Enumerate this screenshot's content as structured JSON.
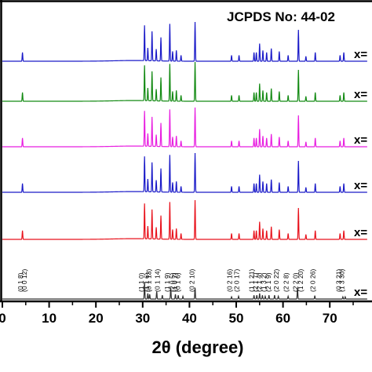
{
  "chart_data": {
    "type": "line",
    "title": "JCPDS No: 44-02",
    "xlabel": "2θ (degree)",
    "ylabel": "",
    "xlim": [
      0,
      78
    ],
    "x_ticks": [
      0,
      10,
      20,
      30,
      40,
      50,
      60,
      70
    ],
    "x_tick_labels": [
      "0",
      "10",
      "20",
      "30",
      "40",
      "50",
      "60",
      "70"
    ],
    "grid": false,
    "legend": "none",
    "series": [
      {
        "name": "x=",
        "color": "#333333",
        "peaks": [
          [
            30.4,
            9
          ],
          [
            31.1,
            3
          ],
          [
            31.5,
            2.5
          ],
          [
            33.0,
            4
          ],
          [
            34.2,
            2
          ],
          [
            36.0,
            6
          ],
          [
            37.0,
            2.5
          ],
          [
            37.6,
            2
          ],
          [
            38.6,
            1.5
          ],
          [
            41.2,
            6
          ],
          [
            49.0,
            1.2
          ],
          [
            50.5,
            1.5
          ],
          [
            53.8,
            2
          ],
          [
            54.4,
            2
          ],
          [
            55.0,
            3
          ],
          [
            55.6,
            2
          ],
          [
            56.2,
            1.5
          ],
          [
            57.0,
            2
          ],
          [
            58.2,
            2
          ],
          [
            59.0,
            1.5
          ],
          [
            61.1,
            1.5
          ],
          [
            63.1,
            6
          ],
          [
            66.8,
            1.8
          ],
          [
            72.8,
            1.2
          ],
          [
            73.3,
            1.2
          ]
        ],
        "baseline": 0
      },
      {
        "name": "x=",
        "color": "#e8121c",
        "peaks": [
          [
            4.3,
            9
          ],
          [
            30.4,
            36
          ],
          [
            31.1,
            13
          ],
          [
            32.0,
            30
          ],
          [
            32.9,
            12
          ],
          [
            33.9,
            24
          ],
          [
            35.8,
            38
          ],
          [
            36.4,
            10
          ],
          [
            37.2,
            11
          ],
          [
            38.2,
            6
          ],
          [
            41.2,
            40
          ],
          [
            49.0,
            6
          ],
          [
            50.6,
            6
          ],
          [
            53.8,
            9
          ],
          [
            54.3,
            9
          ],
          [
            55.0,
            18
          ],
          [
            55.7,
            11
          ],
          [
            56.5,
            9
          ],
          [
            57.5,
            13
          ],
          [
            59.2,
            10
          ],
          [
            61.1,
            6
          ],
          [
            63.3,
            32
          ],
          [
            64.9,
            5
          ],
          [
            66.9,
            9
          ],
          [
            72.2,
            6
          ],
          [
            73.0,
            9
          ]
        ],
        "baseline": 0
      },
      {
        "name": "x=",
        "color": "#1a1ac8",
        "peaks": [
          [
            4.3,
            9
          ],
          [
            30.4,
            36
          ],
          [
            31.1,
            13
          ],
          [
            32.0,
            30
          ],
          [
            32.9,
            12
          ],
          [
            33.9,
            24
          ],
          [
            35.8,
            38
          ],
          [
            36.4,
            10
          ],
          [
            37.2,
            11
          ],
          [
            38.2,
            6
          ],
          [
            41.2,
            40
          ],
          [
            49.0,
            6
          ],
          [
            50.6,
            6
          ],
          [
            53.8,
            9
          ],
          [
            54.3,
            9
          ],
          [
            55.0,
            18
          ],
          [
            55.7,
            11
          ],
          [
            56.5,
            9
          ],
          [
            57.5,
            13
          ],
          [
            59.2,
            10
          ],
          [
            61.1,
            6
          ],
          [
            63.3,
            32
          ],
          [
            64.9,
            5
          ],
          [
            66.9,
            9
          ],
          [
            72.2,
            6
          ],
          [
            73.0,
            9
          ]
        ],
        "baseline": 0
      },
      {
        "name": "x=",
        "color": "#e81ee0",
        "peaks": [
          [
            4.3,
            9
          ],
          [
            30.4,
            36
          ],
          [
            31.1,
            13
          ],
          [
            32.0,
            30
          ],
          [
            32.9,
            12
          ],
          [
            33.9,
            24
          ],
          [
            35.8,
            38
          ],
          [
            36.4,
            10
          ],
          [
            37.2,
            11
          ],
          [
            38.2,
            6
          ],
          [
            41.2,
            40
          ],
          [
            49.0,
            6
          ],
          [
            50.6,
            6
          ],
          [
            53.8,
            9
          ],
          [
            54.3,
            9
          ],
          [
            55.0,
            18
          ],
          [
            55.7,
            11
          ],
          [
            56.5,
            9
          ],
          [
            57.5,
            13
          ],
          [
            59.2,
            10
          ],
          [
            61.1,
            6
          ],
          [
            63.3,
            32
          ],
          [
            64.9,
            5
          ],
          [
            66.9,
            9
          ],
          [
            72.2,
            6
          ],
          [
            73.0,
            9
          ]
        ],
        "baseline": 0
      },
      {
        "name": "x=",
        "color": "#138a13",
        "peaks": [
          [
            4.3,
            9
          ],
          [
            30.4,
            36
          ],
          [
            31.1,
            13
          ],
          [
            32.0,
            30
          ],
          [
            32.9,
            12
          ],
          [
            33.9,
            24
          ],
          [
            35.8,
            38
          ],
          [
            36.4,
            10
          ],
          [
            37.2,
            11
          ],
          [
            38.2,
            6
          ],
          [
            41.2,
            40
          ],
          [
            49.0,
            6
          ],
          [
            50.6,
            6
          ],
          [
            53.8,
            9
          ],
          [
            54.3,
            9
          ],
          [
            55.0,
            18
          ],
          [
            55.7,
            11
          ],
          [
            56.5,
            9
          ],
          [
            57.5,
            13
          ],
          [
            59.2,
            10
          ],
          [
            61.1,
            6
          ],
          [
            63.3,
            32
          ],
          [
            64.9,
            5
          ],
          [
            66.9,
            9
          ],
          [
            72.2,
            6
          ],
          [
            73.0,
            9
          ]
        ],
        "baseline": 0
      },
      {
        "name": "x=",
        "color": "#1a1ac8",
        "peaks": [
          [
            4.3,
            9
          ],
          [
            30.4,
            36
          ],
          [
            31.1,
            13
          ],
          [
            32.0,
            30
          ],
          [
            32.9,
            12
          ],
          [
            33.9,
            24
          ],
          [
            35.8,
            38
          ],
          [
            36.4,
            10
          ],
          [
            37.2,
            11
          ],
          [
            38.2,
            6
          ],
          [
            41.2,
            40
          ],
          [
            49.0,
            6
          ],
          [
            50.6,
            6
          ],
          [
            53.8,
            9
          ],
          [
            54.3,
            9
          ],
          [
            55.0,
            18
          ],
          [
            55.7,
            11
          ],
          [
            56.5,
            9
          ],
          [
            57.5,
            13
          ],
          [
            59.2,
            10
          ],
          [
            61.1,
            6
          ],
          [
            63.3,
            32
          ],
          [
            64.9,
            5
          ],
          [
            66.9,
            9
          ],
          [
            72.2,
            6
          ],
          [
            73.0,
            9
          ]
        ],
        "baseline": 0
      }
    ],
    "reference_peaks": [
      {
        "x": 4.4,
        "label": "(0 1 8)"
      },
      {
        "x": 5.2,
        "label": "(0 0 12)"
      },
      {
        "x": 30.2,
        "label": "(1 1 0)"
      },
      {
        "x": 31.4,
        "label": "(1 1 6)"
      },
      {
        "x": 31.8,
        "label": "(0 1 13)"
      },
      {
        "x": 33.6,
        "label": "(0 1 14)"
      },
      {
        "x": 35.7,
        "label": "(1 1 9)"
      },
      {
        "x": 36.8,
        "label": "(2 0 5)"
      },
      {
        "x": 37.3,
        "label": "(1 0 7)"
      },
      {
        "x": 38.0,
        "label": "(0 1 6)"
      },
      {
        "x": 41.0,
        "label": "(0 2 10)"
      },
      {
        "x": 49.1,
        "label": "(0 2 16)"
      },
      {
        "x": 50.6,
        "label": "(2 0 17)"
      },
      {
        "x": 53.8,
        "label": "(1 1 21)"
      },
      {
        "x": 54.6,
        "label": "(2 1 7)"
      },
      {
        "x": 55.4,
        "label": "(2 1 4)"
      },
      {
        "x": 56.4,
        "label": "(1 3 2)"
      },
      {
        "x": 57.4,
        "label": "(2 1 9)"
      },
      {
        "x": 59.1,
        "label": "(2 0 22)"
      },
      {
        "x": 61.2,
        "label": "(2 2 8)"
      },
      {
        "x": 63.2,
        "label": "(2 2 0)"
      },
      {
        "x": 64.3,
        "label": "(1 2 20)"
      },
      {
        "x": 66.9,
        "label": "(2 0 26)"
      },
      {
        "x": 72.4,
        "label": "(0 3 21)"
      },
      {
        "x": 73.1,
        "label": "(1 3 30)"
      }
    ]
  }
}
